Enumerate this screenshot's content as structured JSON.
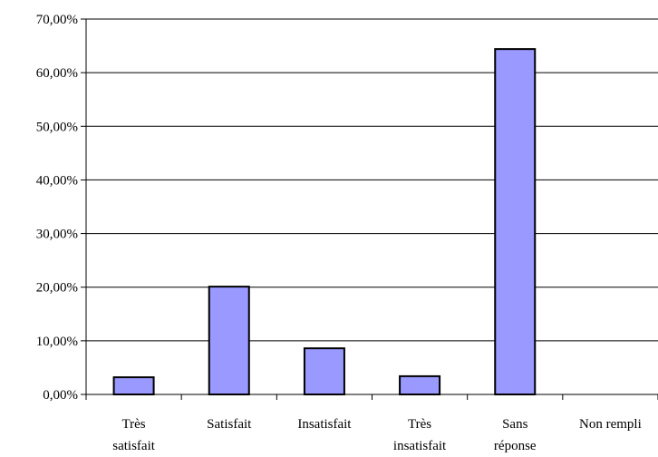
{
  "chart_data": {
    "type": "bar",
    "categories": [
      [
        "Très",
        "satisfait"
      ],
      [
        "Satisfait"
      ],
      [
        "Insatisfait"
      ],
      [
        "Très",
        "insatisfait"
      ],
      [
        "Sans",
        "réponse"
      ],
      [
        "Non rempli"
      ]
    ],
    "values": [
      3.2,
      20.1,
      8.6,
      3.4,
      64.4,
      0
    ],
    "ylim": [
      0,
      70
    ],
    "yticks": [
      "0,00%",
      "10,00%",
      "20,00%",
      "30,00%",
      "40,00%",
      "50,00%",
      "60,00%",
      "70,00%"
    ],
    "ytick_values": [
      0,
      10,
      20,
      30,
      40,
      50,
      60,
      70
    ],
    "grid": true,
    "legend": "none",
    "colors": {
      "bar_fill": "#9999ff",
      "bar_stroke": "#000000",
      "grid": "#000000",
      "axis": "#000000"
    }
  }
}
